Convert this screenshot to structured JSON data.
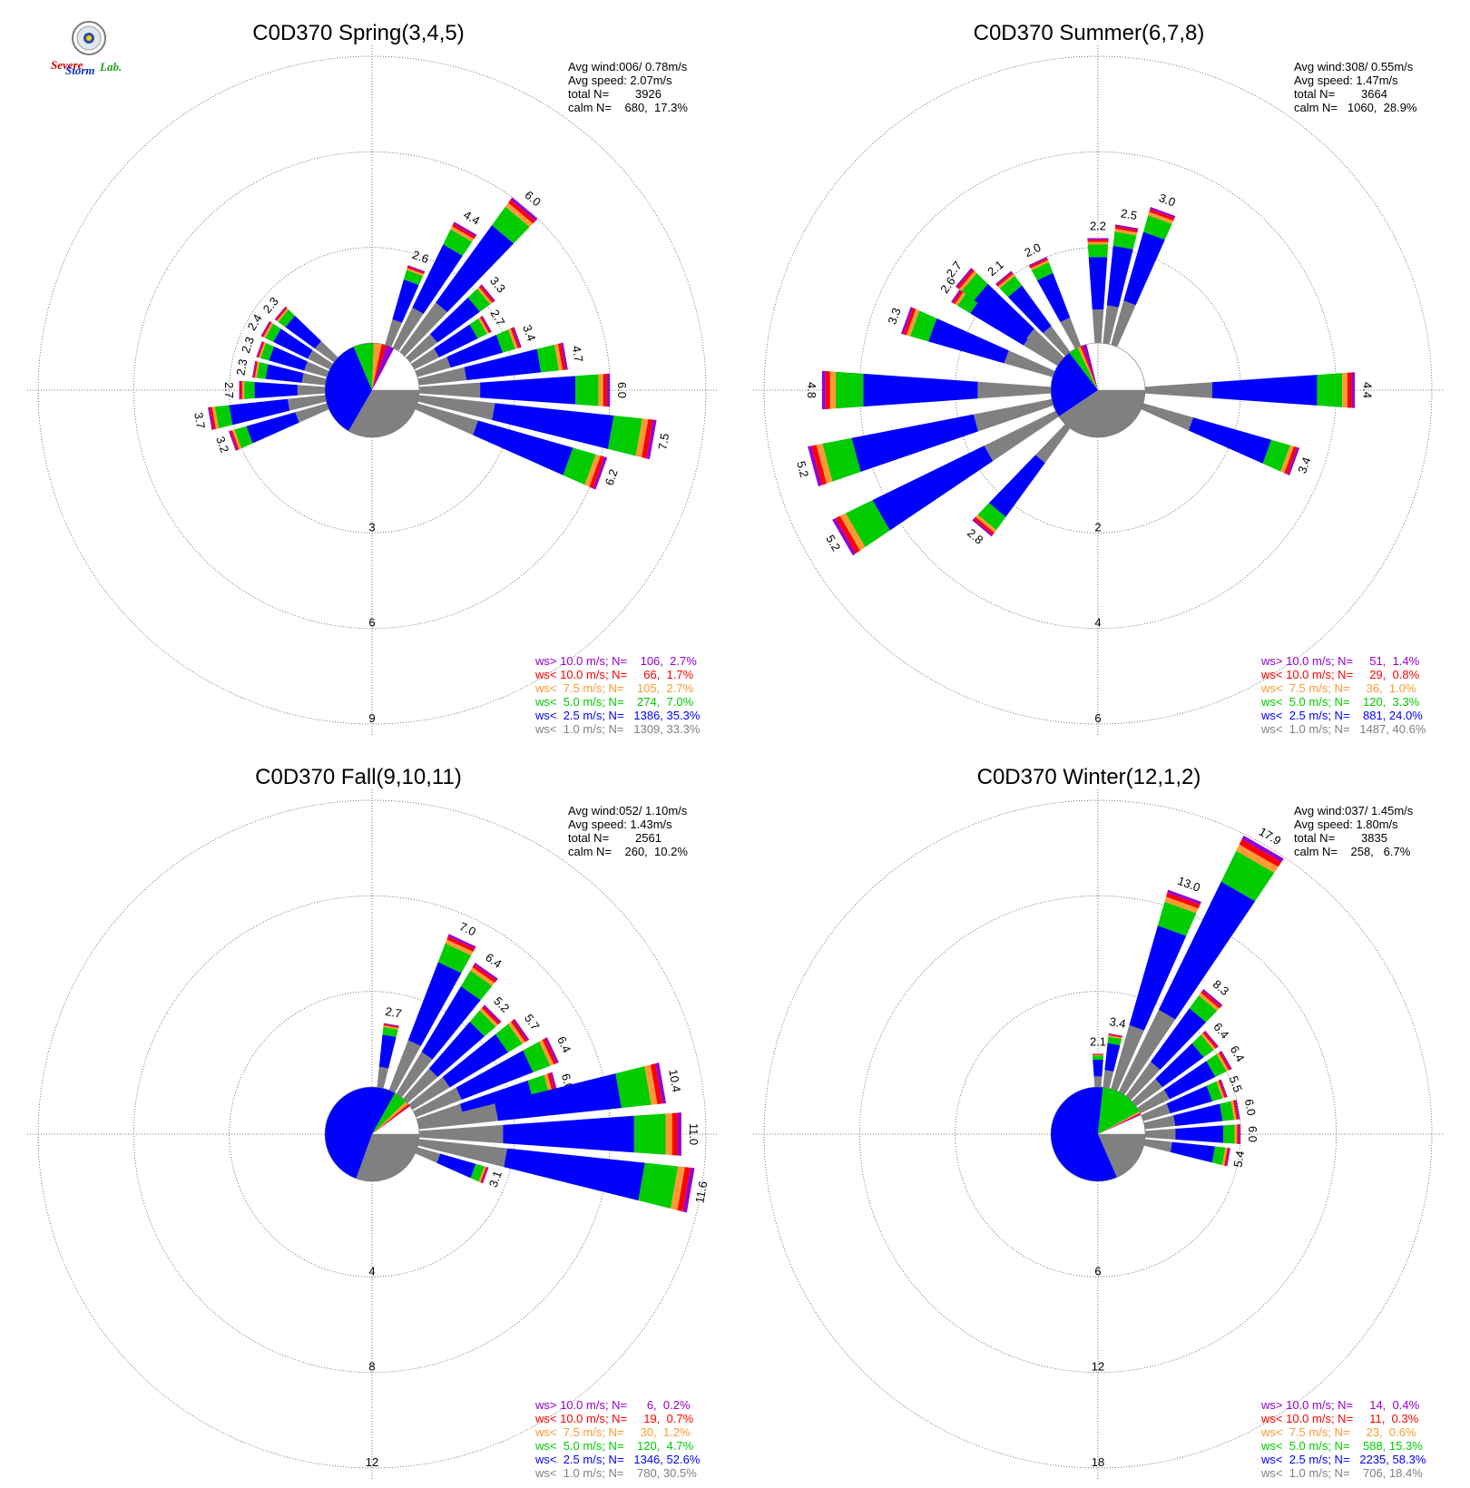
{
  "colors": {
    "ws_gt_10": "#9400d3",
    "ws_lt_10": "#ff0000",
    "ws_lt_7_5": "#ff9933",
    "ws_lt_5": "#00cc00",
    "ws_lt_2_5": "#0000ff",
    "ws_lt_1": "#808080"
  },
  "logo": {
    "text1": "Severe",
    "text2": "Storm",
    "text3": "Lab.",
    "icon": "seal-icon"
  },
  "chart_data": [
    {
      "type": "wind-rose",
      "title": "C0D370 Spring(3,4,5)",
      "stats": [
        "Avg wind:006/ 0.78m/s",
        "Avg speed: 2.07m/s",
        "total N=        3926",
        "calm N=    680,  17.3%"
      ],
      "rings": [
        3,
        6,
        9
      ],
      "ring_labels": [
        "3",
        "6",
        "9"
      ],
      "rmax": 9,
      "calm_slices": [
        {
          "class": "ws<1.0",
          "pct": 33.3
        },
        {
          "class": "ws<2.5",
          "pct": 35.3
        },
        {
          "class": "ws<5.0",
          "pct": 7.0
        },
        {
          "class": "ws<7.5",
          "pct": 2.7
        },
        {
          "class": "ws<10.0",
          "pct": 1.7
        },
        {
          "class": "ws>10.0",
          "pct": 2.7
        }
      ],
      "bars": [
        {
          "dir": 20,
          "total": 2.6,
          "label": "2.6"
        },
        {
          "dir": 30,
          "total": 4.4,
          "label": "4.4"
        },
        {
          "dir": 40,
          "total": 6.0,
          "label": "6.0"
        },
        {
          "dir": 50,
          "total": 3.3,
          "label": "3.3"
        },
        {
          "dir": 60,
          "total": 2.7,
          "label": "2.7"
        },
        {
          "dir": 70,
          "total": 3.4,
          "label": "3.4"
        },
        {
          "dir": 80,
          "total": 4.7,
          "label": "4.7"
        },
        {
          "dir": 90,
          "total": 6.0,
          "label": "6.0"
        },
        {
          "dir": 100,
          "total": 7.5,
          "label": "7.5"
        },
        {
          "dir": 110,
          "total": 6.2,
          "label": "6.2"
        },
        {
          "dir": 250,
          "total": 3.2,
          "label": "3.2"
        },
        {
          "dir": 260,
          "total": 3.7,
          "label": "3.7"
        },
        {
          "dir": 270,
          "total": 2.7,
          "label": "2.7"
        },
        {
          "dir": 280,
          "total": 2.3,
          "label": "2.3"
        },
        {
          "dir": 290,
          "total": 2.3,
          "label": "2.3"
        },
        {
          "dir": 300,
          "total": 2.4,
          "label": "2.4"
        },
        {
          "dir": 310,
          "total": 2.3,
          "label": "2.3"
        }
      ],
      "legend": [
        "ws> 10.0 m/s; N=    106,  2.7%",
        "ws< 10.0 m/s; N=     66,  1.7%",
        "ws<  7.5 m/s; N=    105,  2.7%",
        "ws<  5.0 m/s; N=    274,  7.0%",
        "ws<  2.5 m/s; N=   1386, 35.3%",
        "ws<  1.0 m/s; N=   1309, 33.3%"
      ]
    },
    {
      "type": "wind-rose",
      "title": "C0D370 Summer(6,7,8)",
      "stats": [
        "Avg wind:308/ 0.55m/s",
        "Avg speed: 1.47m/s",
        "total N=        3664",
        "calm N=   1060,  28.9%"
      ],
      "rings": [
        2,
        4,
        6
      ],
      "ring_labels": [
        "2",
        "4",
        "6"
      ],
      "rmax": 6,
      "calm_slices": [
        {
          "class": "ws<1.0",
          "pct": 40.6
        },
        {
          "class": "ws<2.5",
          "pct": 24.0
        },
        {
          "class": "ws<5.0",
          "pct": 3.3
        },
        {
          "class": "ws<7.5",
          "pct": 1.0
        },
        {
          "class": "ws<10.0",
          "pct": 0.8
        },
        {
          "class": "ws>10.0",
          "pct": 1.4
        }
      ],
      "bars": [
        {
          "dir": 0,
          "total": 2.2,
          "label": "2.2"
        },
        {
          "dir": 10,
          "total": 2.5,
          "label": "2.5"
        },
        {
          "dir": 20,
          "total": 3.0,
          "label": "3.0"
        },
        {
          "dir": 90,
          "total": 4.4,
          "label": "4.4"
        },
        {
          "dir": 110,
          "total": 3.4,
          "label": "3.4"
        },
        {
          "dir": 220,
          "total": 2.8,
          "label": "2.8"
        },
        {
          "dir": 240,
          "total": 5.2,
          "label": "5.2"
        },
        {
          "dir": 255,
          "total": 5.2,
          "label": "5.2"
        },
        {
          "dir": 270,
          "total": 4.8,
          "label": "4.8"
        },
        {
          "dir": 290,
          "total": 3.3,
          "label": "3.3"
        },
        {
          "dir": 305,
          "total": 2.6,
          "label": "2.6"
        },
        {
          "dir": 310,
          "total": 2.7,
          "label": "2.7"
        },
        {
          "dir": 320,
          "total": 2.1,
          "label": "2.1"
        },
        {
          "dir": 335,
          "total": 2.0,
          "label": "2.0"
        }
      ],
      "legend": [
        "ws> 10.0 m/s; N=     51,  1.4%",
        "ws< 10.0 m/s; N=     29,  0.8%",
        "ws<  7.5 m/s; N=     36,  1.0%",
        "ws<  5.0 m/s; N=    120,  3.3%",
        "ws<  2.5 m/s; N=    881, 24.0%",
        "ws<  1.0 m/s; N=   1487, 40.6%"
      ]
    },
    {
      "type": "wind-rose",
      "title": "C0D370 Fall(9,10,11)",
      "stats": [
        "Avg wind:052/ 1.10m/s",
        "Avg speed: 1.43m/s",
        "total N=        2561",
        "calm N=    260,  10.2%"
      ],
      "rings": [
        4,
        8,
        12
      ],
      "ring_labels": [
        "4",
        "8",
        "12"
      ],
      "rmax": 12,
      "calm_slices": [
        {
          "class": "ws<1.0",
          "pct": 30.5
        },
        {
          "class": "ws<2.5",
          "pct": 52.6
        },
        {
          "class": "ws<5.0",
          "pct": 4.7
        },
        {
          "class": "ws<7.5",
          "pct": 1.2
        },
        {
          "class": "ws<10.0",
          "pct": 0.7
        },
        {
          "class": "ws>10.0",
          "pct": 0.2
        }
      ],
      "bars": [
        {
          "dir": 10,
          "total": 2.7,
          "label": "2.7"
        },
        {
          "dir": 25,
          "total": 7.0,
          "label": "7.0"
        },
        {
          "dir": 35,
          "total": 6.4,
          "label": "6.4"
        },
        {
          "dir": 45,
          "total": 5.2,
          "label": "5.2"
        },
        {
          "dir": 55,
          "total": 5.7,
          "label": "5.7"
        },
        {
          "dir": 65,
          "total": 6.4,
          "label": "6.4"
        },
        {
          "dir": 75,
          "total": 6.0,
          "label": "6.0"
        },
        {
          "dir": 80,
          "total": 10.4,
          "label": "10.4"
        },
        {
          "dir": 90,
          "total": 11.0,
          "label": "11.0"
        },
        {
          "dir": 100,
          "total": 11.6,
          "label": "11.6"
        },
        {
          "dir": 110,
          "total": 3.1,
          "label": "3.1"
        }
      ],
      "legend": [
        "ws> 10.0 m/s; N=      6,  0.2%",
        "ws< 10.0 m/s; N=     19,  0.7%",
        "ws<  7.5 m/s; N=     30,  1.2%",
        "ws<  5.0 m/s; N=    120,  4.7%",
        "ws<  2.5 m/s; N=   1346, 52.6%",
        "ws<  1.0 m/s; N=    780, 30.5%"
      ]
    },
    {
      "type": "wind-rose",
      "title": "C0D370 Winter(12,1,2)",
      "stats": [
        "Avg wind:037/ 1.45m/s",
        "Avg speed: 1.80m/s",
        "total N=        3835",
        "calm N=    258,   6.7%"
      ],
      "rings": [
        6,
        12,
        18
      ],
      "ring_labels": [
        "6",
        "12",
        "18"
      ],
      "rmax": 18,
      "calm_slices": [
        {
          "class": "ws<1.0",
          "pct": 18.4
        },
        {
          "class": "ws<2.5",
          "pct": 58.3
        },
        {
          "class": "ws<5.0",
          "pct": 15.3
        },
        {
          "class": "ws<7.5",
          "pct": 0.6
        },
        {
          "class": "ws<10.0",
          "pct": 0.3
        },
        {
          "class": "ws>10.0",
          "pct": 0.4
        }
      ],
      "bars": [
        {
          "dir": 0,
          "total": 2.1,
          "label": "2.1"
        },
        {
          "dir": 10,
          "total": 3.4,
          "label": "3.4"
        },
        {
          "dir": 20,
          "total": 13.0,
          "label": "13.0"
        },
        {
          "dir": 30,
          "total": 17.9,
          "label": "17.9"
        },
        {
          "dir": 40,
          "total": 8.3,
          "label": "8.3"
        },
        {
          "dir": 50,
          "total": 6.4,
          "label": "6.4"
        },
        {
          "dir": 60,
          "total": 6.4,
          "label": "6.4"
        },
        {
          "dir": 70,
          "total": 5.5,
          "label": "5.5"
        },
        {
          "dir": 80,
          "total": 6.0,
          "label": "6.0"
        },
        {
          "dir": 90,
          "total": 6.0,
          "label": "6.0"
        },
        {
          "dir": 100,
          "total": 5.4,
          "label": "5.4"
        }
      ],
      "legend": [
        "ws> 10.0 m/s; N=     14,  0.4%",
        "ws< 10.0 m/s; N=     11,  0.3%",
        "ws<  7.5 m/s; N=     23,  0.6%",
        "ws<  5.0 m/s; N=    588, 15.3%",
        "ws<  2.5 m/s; N=   2235, 58.3%",
        "ws<  1.0 m/s; N=    706, 18.4%"
      ]
    }
  ]
}
